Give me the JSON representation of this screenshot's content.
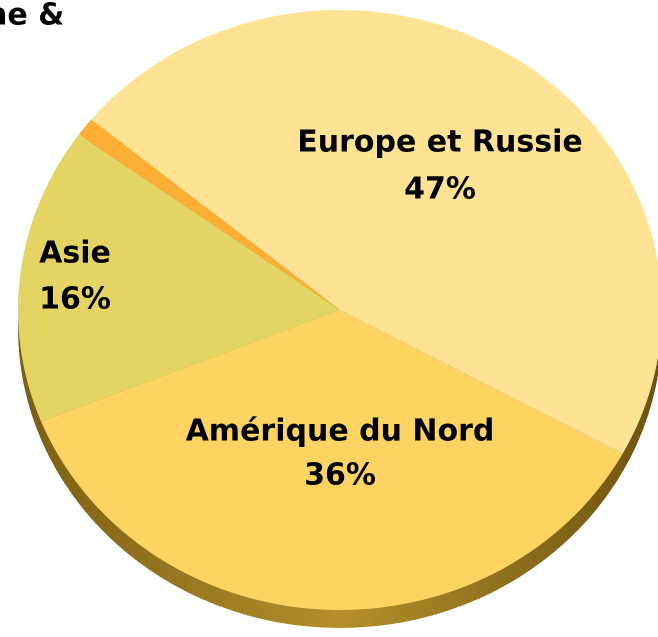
{
  "chart_data": {
    "type": "pie",
    "title": "ne &",
    "categories": [
      "Europe et Russie",
      "Amérique du Nord",
      "Asie",
      null
    ],
    "values": [
      47,
      36,
      16,
      1
    ],
    "value_labels": [
      "47%",
      "36%",
      "16%",
      null
    ],
    "colors": [
      "#fde393",
      "#fdd462",
      "#e3d463",
      "#fcae35"
    ]
  }
}
